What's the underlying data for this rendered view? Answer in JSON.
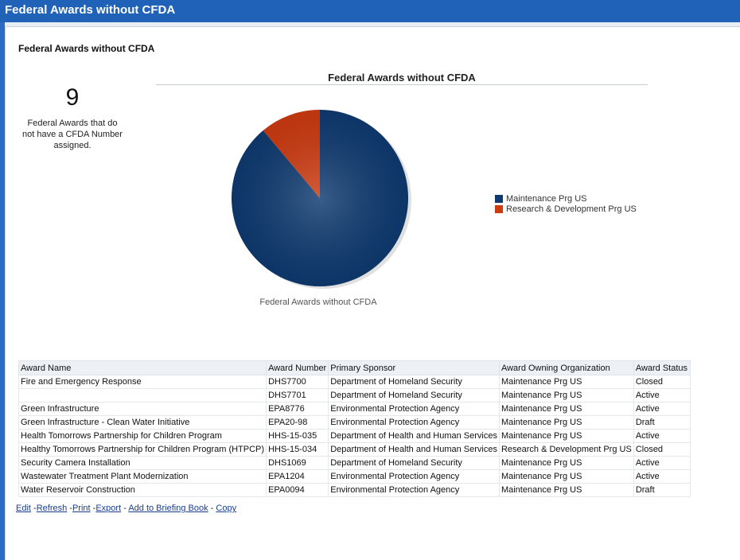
{
  "window": {
    "title": "Federal Awards without CFDA"
  },
  "section": {
    "title": "Federal Awards without CFDA"
  },
  "kpi": {
    "value": "9",
    "description": "Federal Awards that do not have a CFDA Number assigned."
  },
  "chart_data": {
    "type": "pie",
    "title": "Federal Awards without CFDA",
    "caption": "Federal Awards without CFDA",
    "categories": [
      "Maintenance Prg US",
      "Research & Development Prg US"
    ],
    "values": [
      8,
      1
    ],
    "colors": [
      "#0e3a70",
      "#cc3a10"
    ],
    "legend_position": "right"
  },
  "table": {
    "headers": [
      "Award Name",
      "Award Number",
      "Primary Sponsor",
      "Award Owning Organization",
      "Award Status"
    ],
    "rows": [
      [
        "Fire and Emergency Response",
        "DHS7700",
        "Department of Homeland Security",
        "Maintenance Prg US",
        "Closed"
      ],
      [
        "",
        "DHS7701",
        "Department of Homeland Security",
        "Maintenance Prg US",
        "Active"
      ],
      [
        "Green Infrastructure",
        "EPA8776",
        "Environmental Protection Agency",
        "Maintenance Prg US",
        "Active"
      ],
      [
        "Green Infrastructure - Clean Water Initiative",
        "EPA20-98",
        "Environmental Protection Agency",
        "Maintenance Prg US",
        "Draft"
      ],
      [
        "Health Tomorrows Partnership for Children Program",
        "HHS-15-035",
        "Department of Health and Human Services",
        "Maintenance Prg US",
        "Active"
      ],
      [
        "Healthy Tomorrows Partnership for Children Program (HTPCP)",
        "HHS-15-034",
        "Department of Health and Human Services",
        "Research & Development Prg US",
        "Closed"
      ],
      [
        "Security Camera Installation",
        "DHS1069",
        "Department of Homeland Security",
        "Maintenance Prg US",
        "Active"
      ],
      [
        "Wastewater Treatment Plant Modernization",
        "EPA1204",
        "Environmental Protection Agency",
        "Maintenance Prg US",
        "Active"
      ],
      [
        "Water Reservoir Construction",
        "EPA0094",
        "Environmental Protection Agency",
        "Maintenance Prg US",
        "Draft"
      ]
    ]
  },
  "links": {
    "edit": "Edit",
    "refresh": "Refresh",
    "print": "Print",
    "export": "Export",
    "briefing": "Add to Briefing Book",
    "copy": "Copy"
  }
}
